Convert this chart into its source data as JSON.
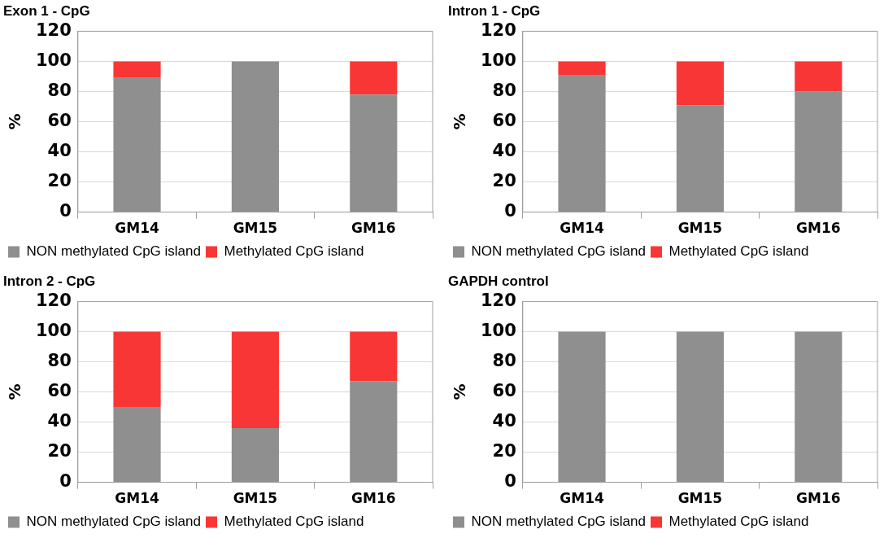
{
  "chart_data": [
    {
      "type": "bar",
      "title": "Exon 1 - CpG",
      "ylabel": "%",
      "categories": [
        "GM14",
        "GM15",
        "GM16"
      ],
      "stacked": true,
      "ylim": [
        0,
        120
      ],
      "yticks": [
        0,
        20,
        40,
        60,
        80,
        100,
        120
      ],
      "grid": "y",
      "legend": "bottom",
      "series": [
        {
          "name": "NON methylated CpG island",
          "color": "#8f8f8f",
          "values": [
            89,
            100,
            78
          ]
        },
        {
          "name": "Methylated CpG island",
          "color": "#f93636",
          "values": [
            11,
            0,
            22
          ]
        }
      ]
    },
    {
      "type": "bar",
      "title": "Intron 1 - CpG",
      "ylabel": "%",
      "categories": [
        "GM14",
        "GM15",
        "GM16"
      ],
      "stacked": true,
      "ylim": [
        0,
        120
      ],
      "yticks": [
        0,
        20,
        40,
        60,
        80,
        100,
        120
      ],
      "grid": "y",
      "legend": "bottom",
      "series": [
        {
          "name": "NON methylated CpG island",
          "color": "#8f8f8f",
          "values": [
            91,
            71,
            80
          ]
        },
        {
          "name": "Methylated CpG island",
          "color": "#f93636",
          "values": [
            9,
            29,
            20
          ]
        }
      ]
    },
    {
      "type": "bar",
      "title": "Intron 2 - CpG",
      "ylabel": "%",
      "categories": [
        "GM14",
        "GM15",
        "GM16"
      ],
      "stacked": true,
      "ylim": [
        0,
        120
      ],
      "yticks": [
        0,
        20,
        40,
        60,
        80,
        100,
        120
      ],
      "grid": "y",
      "legend": "bottom",
      "series": [
        {
          "name": "NON methylated CpG island",
          "color": "#8f8f8f",
          "values": [
            50,
            36,
            67
          ]
        },
        {
          "name": "Methylated CpG island",
          "color": "#f93636",
          "values": [
            50,
            64,
            33
          ]
        }
      ]
    },
    {
      "type": "bar",
      "title": "GAPDH control",
      "ylabel": "%",
      "categories": [
        "GM14",
        "GM15",
        "GM16"
      ],
      "stacked": true,
      "ylim": [
        0,
        120
      ],
      "yticks": [
        0,
        20,
        40,
        60,
        80,
        100,
        120
      ],
      "grid": "y",
      "legend": "bottom",
      "series": [
        {
          "name": "NON methylated CpG island",
          "color": "#8f8f8f",
          "values": [
            100,
            100,
            100
          ]
        },
        {
          "name": "Methylated CpG island",
          "color": "#f93636",
          "values": [
            0,
            0,
            0
          ]
        }
      ]
    }
  ]
}
